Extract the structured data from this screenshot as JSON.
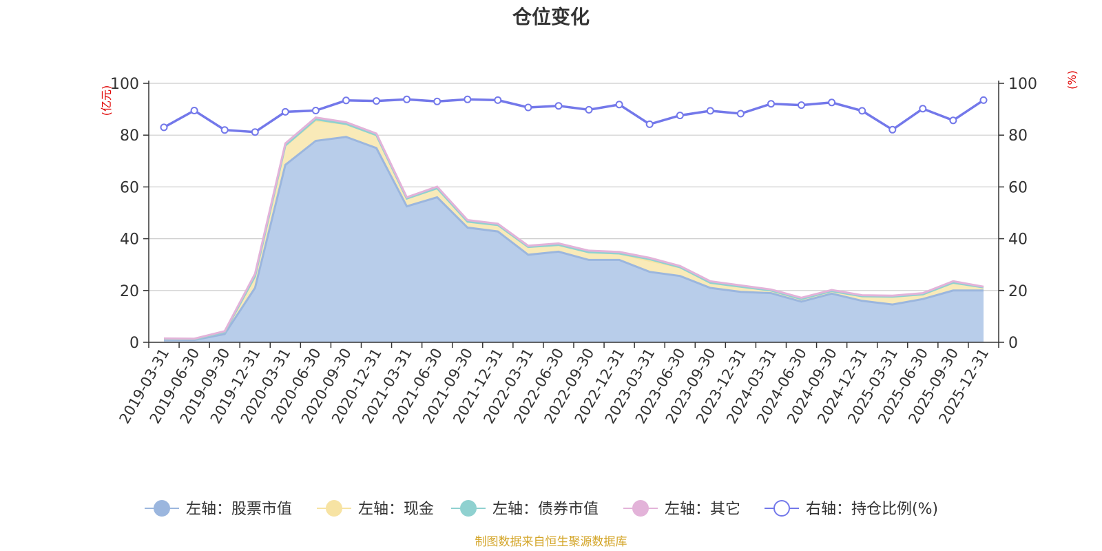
{
  "chart_data": {
    "type": "area",
    "title": "仓位变化",
    "left_axis_label": "(亿元)",
    "right_axis_label": "(%)",
    "left_ylim": [
      0,
      100
    ],
    "right_ylim": [
      0,
      100
    ],
    "left_ticks": [
      0,
      20,
      40,
      60,
      80,
      100
    ],
    "right_ticks": [
      0,
      20,
      40,
      60,
      80,
      100
    ],
    "grid": true,
    "categories": [
      "2019-03-31",
      "2019-06-30",
      "2019-09-30",
      "2019-12-31",
      "2020-03-31",
      "2020-06-30",
      "2020-09-30",
      "2020-12-31",
      "2021-03-31",
      "2021-06-30",
      "2021-09-30",
      "2021-12-31",
      "2022-03-31",
      "2022-06-30",
      "2022-09-30",
      "2022-12-31",
      "2023-03-31",
      "2023-06-30",
      "2023-09-30",
      "2023-12-31",
      "2024-03-31",
      "2024-06-30",
      "2024-09-30",
      "2024-12-31",
      "2025-03-31",
      "2025-06-30",
      "2025-09-30",
      "2025-12-31"
    ],
    "series": [
      {
        "name": "左轴：股票市值",
        "axis": "left",
        "kind": "area",
        "color": "#9bb6de",
        "fill": "#b8cdea",
        "values": [
          1.0,
          0.9,
          3.2,
          21.0,
          68.5,
          77.8,
          79.3,
          75.0,
          52.5,
          56.0,
          44.3,
          42.8,
          33.8,
          35.0,
          31.8,
          31.8,
          27.2,
          25.6,
          21.0,
          19.5,
          19.0,
          15.7,
          18.8,
          16.0,
          14.6,
          16.7,
          20.0,
          20.0
        ]
      },
      {
        "name": "左轴：现金",
        "axis": "left",
        "kind": "area",
        "color": "#f7e3a3",
        "fill": "#f9eab8",
        "values": [
          0.3,
          0.3,
          0.8,
          4.5,
          7.5,
          7.8,
          5.0,
          5.0,
          3.0,
          3.5,
          2.3,
          2.5,
          3.0,
          2.6,
          3.0,
          2.5,
          4.3,
          3.4,
          2.0,
          2.0,
          1.0,
          1.0,
          1.0,
          1.8,
          3.0,
          1.8,
          3.0,
          1.2
        ]
      },
      {
        "name": "左轴：债券市值",
        "axis": "left",
        "kind": "area",
        "color": "#8fd1d0",
        "fill": "#a8dcdb",
        "values": [
          0,
          0,
          0,
          0,
          0,
          0.5,
          0,
          0,
          0,
          0,
          0,
          0,
          0,
          0,
          0,
          0,
          0.6,
          0,
          0,
          0,
          0,
          0,
          0,
          0,
          0,
          0,
          0,
          0
        ]
      },
      {
        "name": "左轴：其它",
        "axis": "left",
        "kind": "area",
        "color": "#e3b3d9",
        "fill": "#ecc6e3",
        "values": [
          0.2,
          0.2,
          0.3,
          1.0,
          0.8,
          0.7,
          0.7,
          0.6,
          0.5,
          0.6,
          0.6,
          0.5,
          0.5,
          0.6,
          0.6,
          0.6,
          0.5,
          0.5,
          0.6,
          0.5,
          0.4,
          0.5,
          0.4,
          0.4,
          0.4,
          0.5,
          0.6,
          0.3
        ]
      },
      {
        "name": "右轴：持仓比例(%)",
        "axis": "right",
        "kind": "line",
        "color": "#7378ea",
        "fill": "#ffffff",
        "values": [
          83.0,
          89.5,
          82.0,
          81.2,
          89.0,
          89.5,
          93.4,
          93.2,
          93.8,
          93.0,
          93.8,
          93.5,
          90.7,
          91.3,
          89.8,
          91.8,
          84.2,
          87.6,
          89.4,
          88.3,
          92.1,
          91.6,
          92.6,
          89.4,
          82.1,
          90.2,
          85.7,
          93.5
        ]
      }
    ],
    "source": "制图数据来自恒生聚源数据库"
  }
}
